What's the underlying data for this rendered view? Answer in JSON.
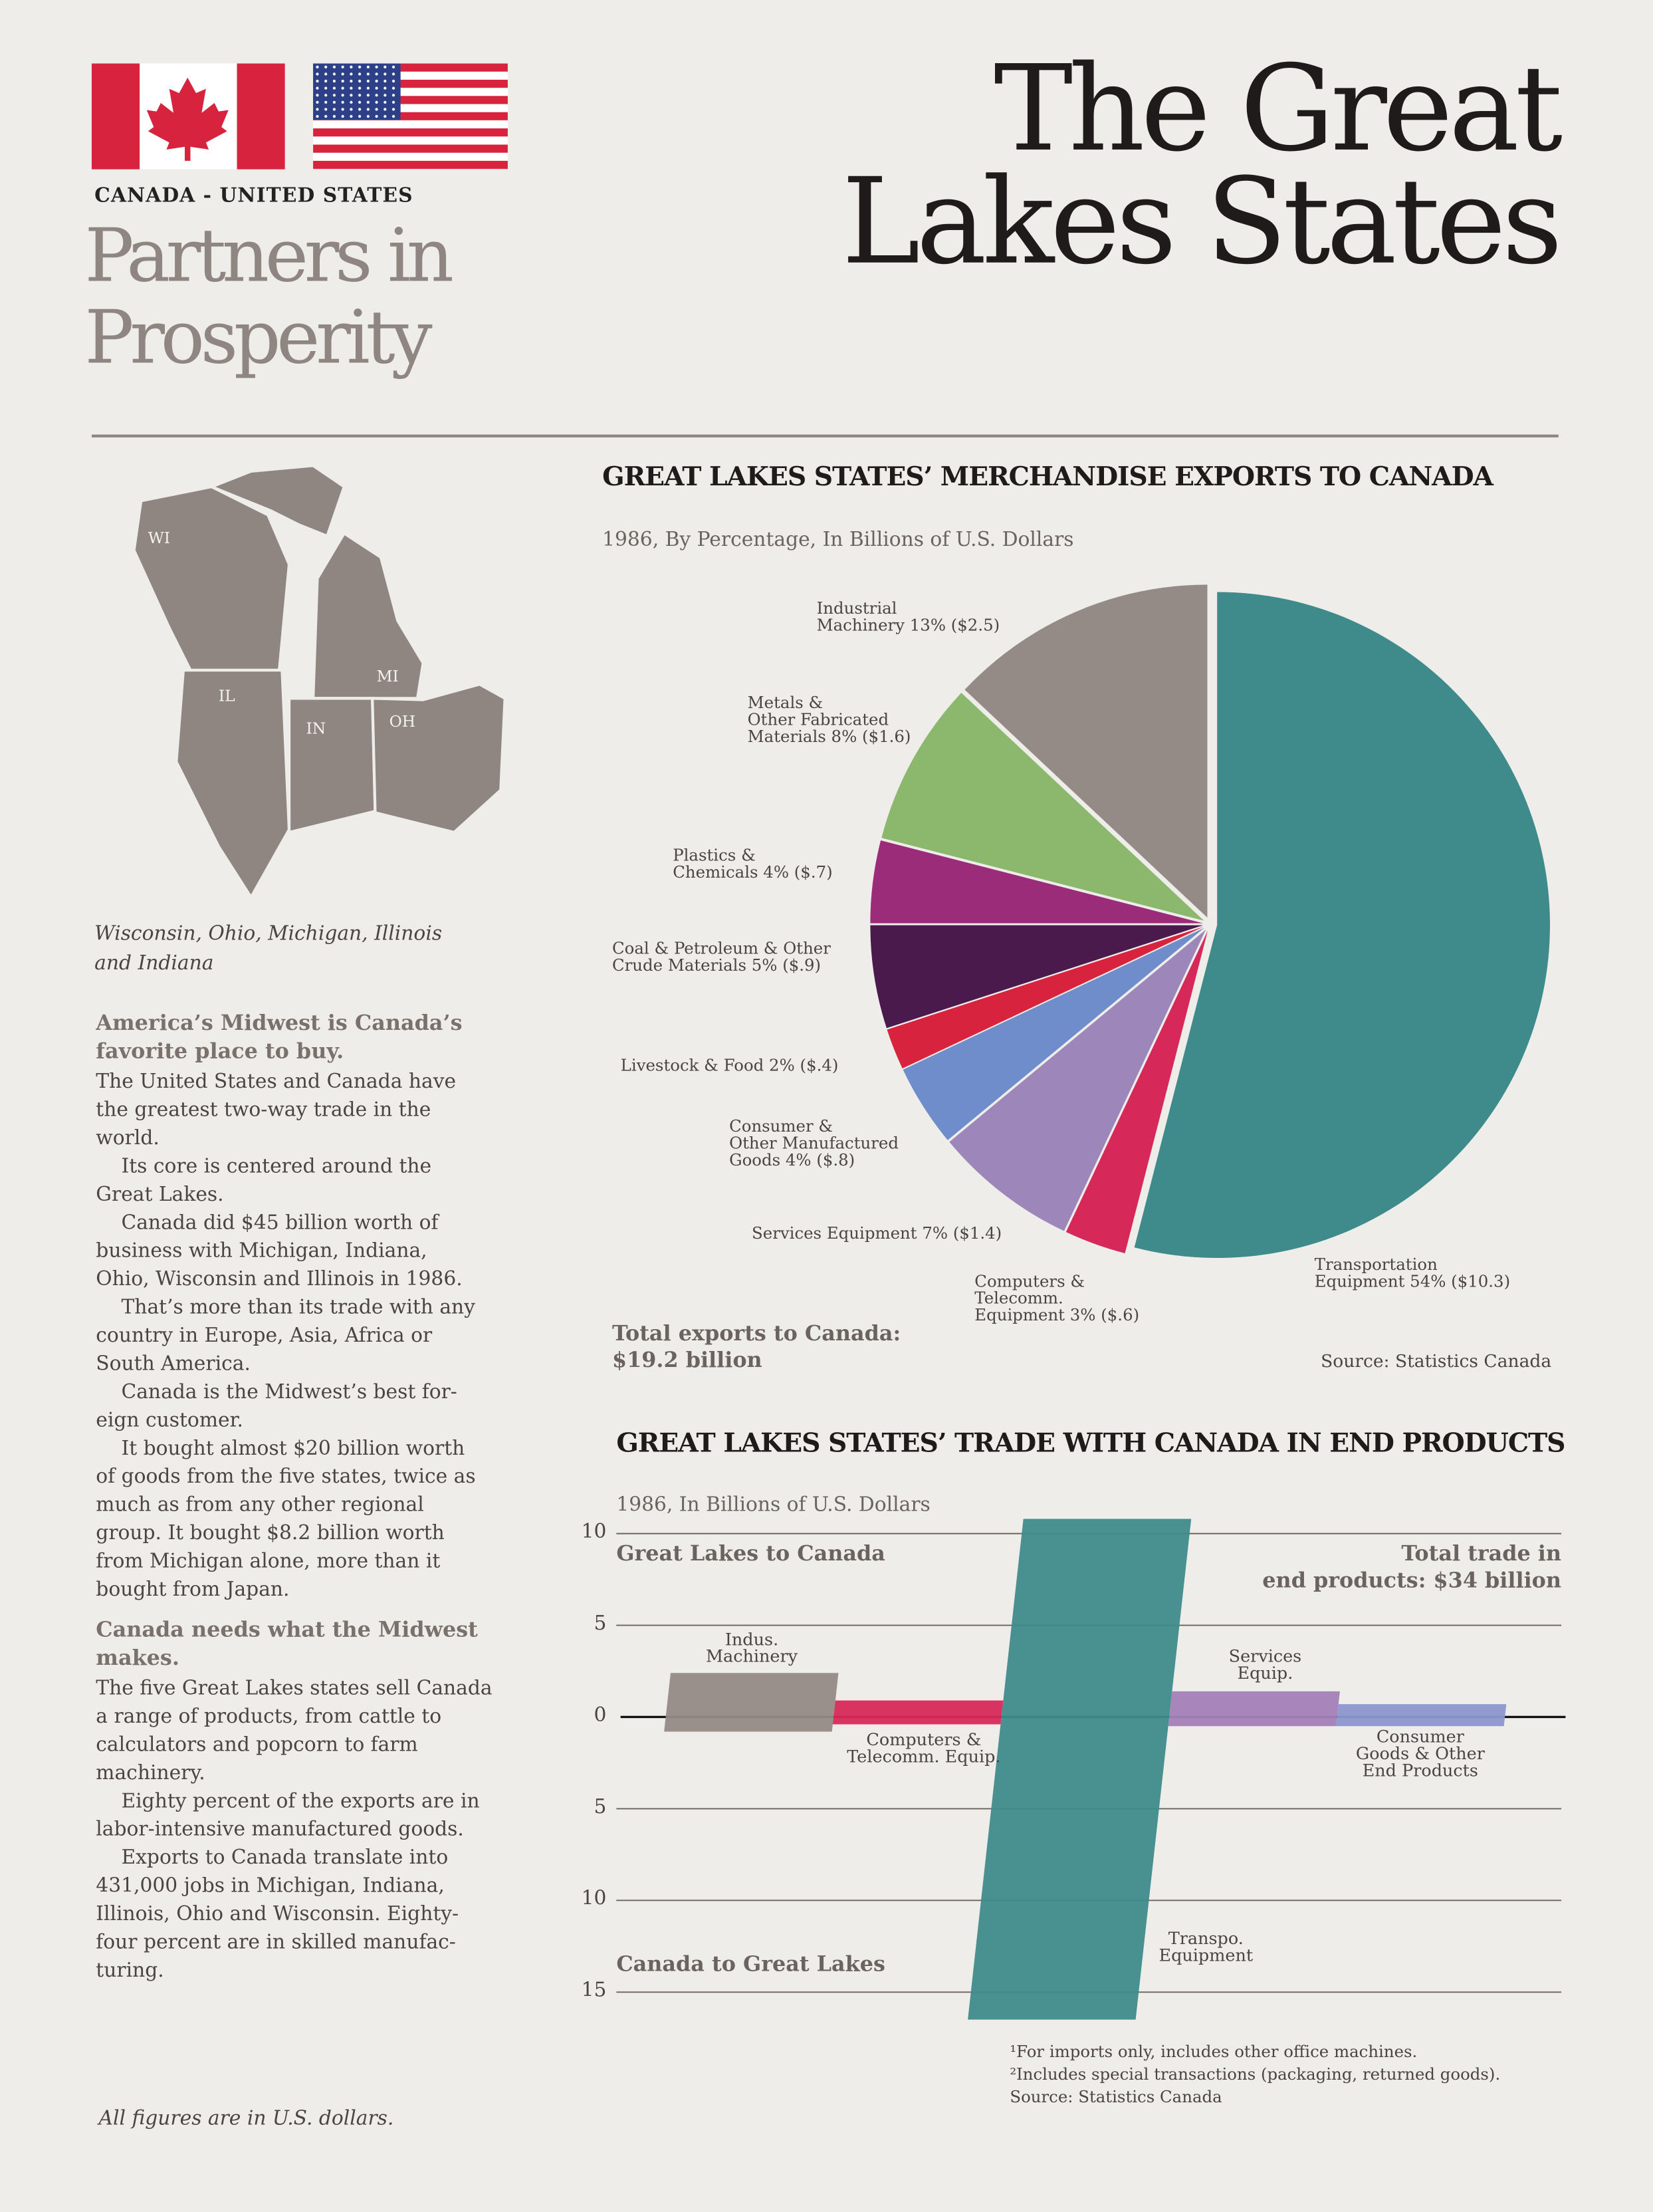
{
  "header": {
    "tagline": "CANADA - UNITED STATES",
    "subtitle": [
      "Partners in",
      "Prosperity"
    ],
    "title": [
      "The Great",
      "Lakes States"
    ]
  },
  "map": {
    "labels": [
      "WI",
      "IL",
      "IN",
      "MI",
      "OH"
    ],
    "caption": [
      "Wisconsin, Ohio, Michigan, Illinois",
      "and Indiana"
    ]
  },
  "body": {
    "sections": [
      {
        "heading": [
          "America’s Midwest is Canada’s",
          "favorite place to buy."
        ],
        "paragraphs": [
          [
            "The United States and Canada have",
            "the greatest two-way trade in the",
            "world."
          ],
          [
            "Its core is centered around the",
            "Great Lakes."
          ],
          [
            "Canada did $45 billion worth of",
            "business with Michigan, Indiana,",
            "Ohio, Wisconsin and Illinois in 1986."
          ],
          [
            "That’s more than its trade with any",
            "country in Europe, Asia, Africa or",
            "South America."
          ],
          [
            "Canada is the Midwest’s best for-",
            "eign customer."
          ],
          [
            "It bought almost $20 billion worth",
            "of goods from the five states, twice as",
            "much as from any other regional",
            "group. It bought $8.2 billion worth",
            "from Michigan alone, more than it",
            "bought from Japan."
          ]
        ]
      },
      {
        "heading": [
          "Canada needs what the Midwest",
          "makes."
        ],
        "paragraphs": [
          [
            "The five Great Lakes states sell Canada",
            "a range of products, from cattle to",
            "calculators and popcorn to farm",
            "machinery."
          ],
          [
            "Eighty percent of the exports are in",
            "labor-intensive manufactured goods."
          ],
          [
            "Exports to Canada translate into",
            "431,000 jobs in Michigan, Indiana,",
            "Illinois, Ohio and Wisconsin. Eighty-",
            "four percent are in skilled manufac-",
            "turing."
          ]
        ]
      }
    ]
  },
  "footer": "All figures are in U.S. dollars.",
  "chart_data": [
    {
      "type": "pie",
      "title": "GREAT LAKES STATES’ MERCHANDISE EXPORTS TO CANADA",
      "subtitle": "1986, By Percentage, In Billions of U.S. Dollars",
      "categories": [
        "Transportation Equipment",
        "Computers & Telecomm. Equipment",
        "Services Equipment",
        "Consumer & Other Manufactured Goods",
        "Livestock & Food",
        "Coal & Petroleum & Other Crude Materials",
        "Plastics & Chemicals",
        "Metals & Other Fabricated Materials",
        "Industrial Machinery"
      ],
      "values": [
        54,
        3,
        7,
        4,
        2,
        5,
        4,
        8,
        13
      ],
      "value_labels": [
        "54%",
        "3%",
        "7%",
        "4%",
        "2%",
        "5%",
        "4%",
        "8%",
        "13%"
      ],
      "amounts": [
        10.3,
        0.6,
        1.4,
        0.8,
        0.4,
        0.9,
        0.7,
        1.6,
        2.5
      ],
      "amount_labels": [
        "($10.3)",
        "($.6)",
        "($1.4)",
        "($.8)",
        "($.4)",
        "($.9)",
        "($.7)",
        "($1.6)",
        "($2.5)"
      ],
      "colors": [
        "#3f8b8b",
        "#d6295a",
        "#9d86b9",
        "#6f8ccb",
        "#d8233f",
        "#4b1a4d",
        "#9b2c7a",
        "#8bb86c",
        "#958b86"
      ],
      "total": [
        "Total exports to Canada:",
        "$19.2 billion"
      ],
      "source": "Source: Statistics Canada"
    },
    {
      "type": "bar",
      "title": "GREAT LAKES STATES’ TRADE WITH CANADA IN END PRODUCTS",
      "subtitle": "1986, In Billions of U.S. Dollars",
      "categories": [
        "Indus. Machinery",
        "Computers & Telecomm. Equip.",
        "Transpo. Equipment",
        "Services Equip.",
        "Consumer Goods & Other End Products"
      ],
      "colors": [
        "#958b86",
        "#d6295a",
        "#3f8b8b",
        "#a381b8",
        "#8b97cd"
      ],
      "series": [
        {
          "name": "Great Lakes to Canada",
          "values": [
            2.4,
            0.9,
            10.8,
            1.4,
            0.7
          ]
        },
        {
          "name": "Canada to Great Lakes",
          "values": [
            -0.8,
            -0.4,
            -16.5,
            -0.5,
            -0.5
          ]
        }
      ],
      "ylim": [
        -17,
        11
      ],
      "yticks": [
        10,
        5,
        0,
        {
          "value": -5,
          "label": "5"
        },
        {
          "value": -10,
          "label": "10"
        },
        {
          "value": -15,
          "label": "15"
        }
      ],
      "total": [
        "Total trade in",
        "end products: $34 billion"
      ],
      "footnotes": [
        "¹For imports only, includes other office machines.",
        "²Includes special transactions (packaging, returned goods).",
        "Source: Statistics Canada"
      ]
    }
  ]
}
